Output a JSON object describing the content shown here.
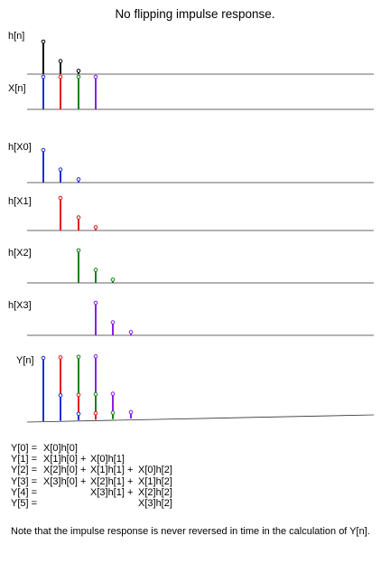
{
  "title": "No flipping impulse response.",
  "colors": {
    "black": "#000000",
    "blue": "#1f2fd6",
    "red": "#e01818",
    "green": "#148014",
    "purple": "#8a1fe0",
    "axis": "#333333"
  },
  "panels": [
    {
      "label": "h[n]",
      "stems": [
        {
          "n": 0,
          "v": 1.0,
          "c": "black"
        },
        {
          "n": 1,
          "v": 0.4,
          "c": "black"
        },
        {
          "n": 2,
          "v": 0.1,
          "c": "black"
        }
      ]
    },
    {
      "label": "X[n]",
      "stems": [
        {
          "n": 0,
          "v": 1.0,
          "c": "blue"
        },
        {
          "n": 1,
          "v": 1.0,
          "c": "red"
        },
        {
          "n": 2,
          "v": 1.0,
          "c": "green"
        },
        {
          "n": 3,
          "v": 1.0,
          "c": "purple"
        }
      ]
    },
    {
      "label": "h[X0]",
      "stems": [
        {
          "n": 0,
          "v": 1.0,
          "c": "blue"
        },
        {
          "n": 1,
          "v": 0.4,
          "c": "blue"
        },
        {
          "n": 2,
          "v": 0.1,
          "c": "blue"
        }
      ]
    },
    {
      "label": "h[X1]",
      "stems": [
        {
          "n": 1,
          "v": 1.0,
          "c": "red"
        },
        {
          "n": 2,
          "v": 0.4,
          "c": "red"
        },
        {
          "n": 3,
          "v": 0.1,
          "c": "red"
        }
      ]
    },
    {
      "label": "h[X2]",
      "stems": [
        {
          "n": 2,
          "v": 1.0,
          "c": "green"
        },
        {
          "n": 3,
          "v": 0.4,
          "c": "green"
        },
        {
          "n": 4,
          "v": 0.1,
          "c": "green"
        }
      ]
    },
    {
      "label": "h[X3]",
      "stems": [
        {
          "n": 3,
          "v": 1.0,
          "c": "purple"
        },
        {
          "n": 4,
          "v": 0.4,
          "c": "purple"
        },
        {
          "n": 5,
          "v": 0.1,
          "c": "purple"
        }
      ]
    }
  ],
  "output": {
    "label": "Y[n]",
    "stack": [
      [
        {
          "v": 1.0,
          "c": "blue"
        }
      ],
      [
        {
          "v": 0.4,
          "c": "blue"
        },
        {
          "v": 1.0,
          "c": "red"
        }
      ],
      [
        {
          "v": 0.1,
          "c": "blue"
        },
        {
          "v": 0.4,
          "c": "red"
        },
        {
          "v": 1.0,
          "c": "green"
        }
      ],
      [
        {
          "v": 0.1,
          "c": "red"
        },
        {
          "v": 0.4,
          "c": "green"
        },
        {
          "v": 1.0,
          "c": "purple"
        }
      ],
      [
        {
          "v": 0.1,
          "c": "green"
        },
        {
          "v": 0.4,
          "c": "purple"
        }
      ],
      [
        {
          "v": 0.1,
          "c": "purple"
        }
      ]
    ]
  },
  "equations": [
    {
      "lhs": "Y[0] =",
      "t0": "X[0]h[0]",
      "t1": "",
      "t2": ""
    },
    {
      "lhs": "Y[1] =",
      "t0": "X[1]h[0] + ",
      "t1": "X[0]h[1]",
      "t2": ""
    },
    {
      "lhs": "Y[2] =",
      "t0": "X[2]h[0] + ",
      "t1": "X[1]h[1] + ",
      "t2": "X[0]h[2]"
    },
    {
      "lhs": "Y[3] =",
      "t0": "X[3]h[0] + ",
      "t1": "X[2]h[1] + ",
      "t2": "X[1]h[2]"
    },
    {
      "lhs": "Y[4] =",
      "t0": "",
      "t1": "X[3]h[1] + ",
      "t2": "X[2]h[2]"
    },
    {
      "lhs": "Y[5] =",
      "t0": "",
      "t1": "",
      "t2": "X[3]h[2]"
    }
  ],
  "note": "Note that the impulse response is never reversed in time in the calculation of Y[n]."
}
